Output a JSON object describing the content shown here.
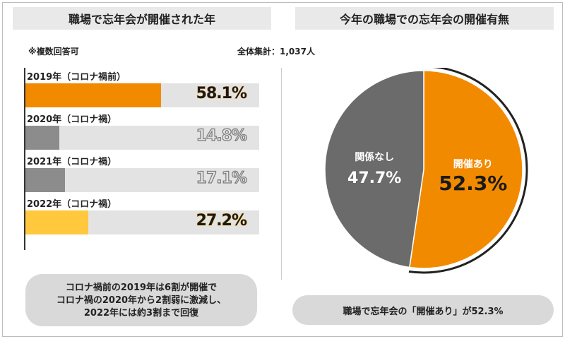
{
  "left_panel": {
    "title": "職場で忘年会が開催された年",
    "note": "※複数回答可",
    "summary_lines": [
      "コロナ禍前の2019年は6割が開催で",
      "コロナ禍の2020年から2割弱に激減し、",
      "2022年には約3割まで回復"
    ]
  },
  "right_panel": {
    "title": "今年の職場での忘年会の開催有無",
    "total_label": "全体集計：1,037人",
    "bottom_caption": "職場で忘年会の「開催あり」が52.3%"
  },
  "colors": {
    "orange": "#f28a00",
    "gray": "#8c8c8c",
    "yellow": "#ffc83d",
    "dark_gray": "#6b6b6b",
    "track": "#e3e3e3"
  },
  "chart_data": [
    {
      "type": "bar",
      "orientation": "horizontal",
      "categories": [
        "2019年（コロナ禍前）",
        "2020年（コロナ禍）",
        "2021年（コロナ禍）",
        "2022年（コロナ禍）"
      ],
      "values": [
        58.1,
        14.8,
        17.1,
        27.2
      ],
      "value_labels": [
        "58.1%",
        "14.8%",
        "17.1%",
        "27.2%"
      ],
      "bar_colors": [
        "#f28a00",
        "#8c8c8c",
        "#8c8c8c",
        "#ffc83d"
      ],
      "xlim": [
        0,
        100
      ],
      "grid": false,
      "legend": "none"
    },
    {
      "type": "pie",
      "slices": [
        {
          "label": "開催あり",
          "value": 52.3,
          "value_label": "52.3%",
          "color": "#f28a00"
        },
        {
          "label": "関係なし",
          "value": 47.7,
          "value_label": "47.7%",
          "color": "#6b6b6b"
        }
      ],
      "start": "top",
      "direction": "clockwise",
      "legend": "none"
    }
  ]
}
